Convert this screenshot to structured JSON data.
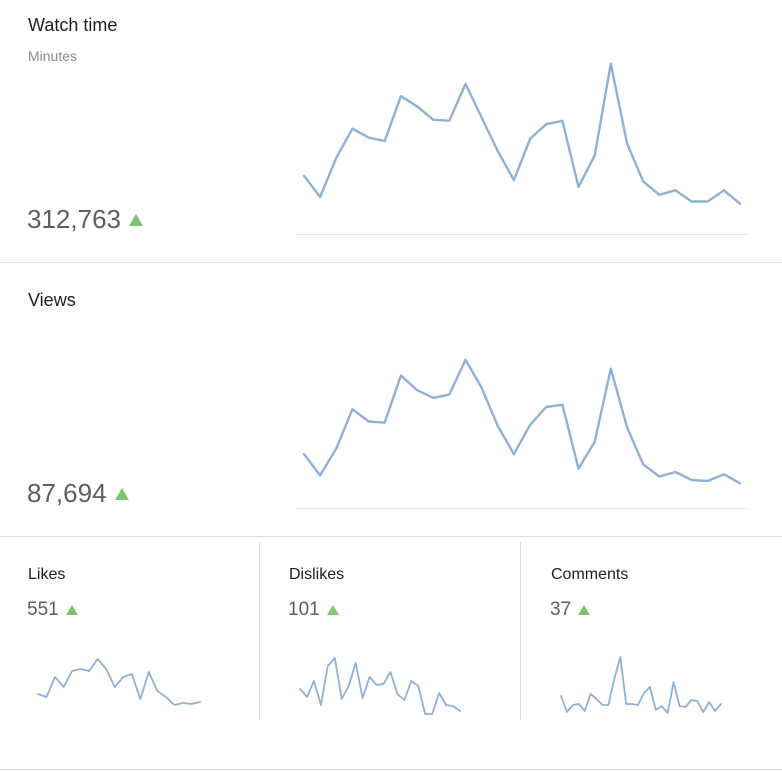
{
  "colors": {
    "line": "#8fb1d5",
    "up": "#7cc66d",
    "divider": "#dcdcdc"
  },
  "icons": {
    "trend": "triangle-up-icon"
  },
  "watch": {
    "title": "Watch time",
    "subtitle": "Minutes",
    "value": "312,763"
  },
  "views": {
    "title": "Views",
    "value": "87,694"
  },
  "likes": {
    "title": "Likes",
    "value": "551"
  },
  "dislikes": {
    "title": "Dislikes",
    "value": "101"
  },
  "comments": {
    "title": "Comments",
    "value": "37"
  },
  "chart_data": [
    {
      "id": "watch",
      "type": "line",
      "series": [
        {
          "values": [
            44,
            25,
            60,
            86,
            78,
            75,
            115,
            106,
            94,
            93,
            126,
            96,
            66,
            40,
            77,
            90,
            93,
            34,
            62,
            144,
            73,
            39,
            27,
            31,
            21,
            21,
            31,
            19
          ]
        }
      ],
      "ylim": [
        0,
        150
      ],
      "grid": false
    },
    {
      "id": "views",
      "type": "line",
      "series": [
        {
          "values": [
            40,
            21,
            45,
            80,
            69,
            68,
            110,
            97,
            90,
            93,
            124,
            99,
            65,
            40,
            66,
            82,
            84,
            27,
            51,
            116,
            64,
            31,
            20,
            24,
            17,
            16,
            22,
            14
          ]
        }
      ],
      "ylim": [
        0,
        130
      ],
      "grid": false
    },
    {
      "id": "likes",
      "type": "line",
      "series": [
        {
          "values": [
            20,
            17,
            37,
            27,
            43,
            45,
            43,
            55,
            45,
            27,
            37,
            40,
            15,
            42,
            23,
            17,
            9,
            11,
            10,
            12
          ]
        }
      ],
      "ylim": [
        0,
        60
      ],
      "grid": false
    },
    {
      "id": "dislikes",
      "type": "line",
      "series": [
        {
          "values": [
            25,
            17,
            33,
            9,
            48,
            56,
            15,
            28,
            51,
            16,
            37,
            29,
            30,
            42,
            20,
            14,
            33,
            28,
            0,
            0,
            21,
            9,
            8,
            3
          ]
        }
      ],
      "ylim": [
        0,
        60
      ],
      "grid": false
    },
    {
      "id": "comments",
      "type": "line",
      "series": [
        {
          "values": [
            18,
            2,
            9,
            10,
            3,
            20,
            15,
            9,
            9,
            35,
            57,
            10,
            10,
            9,
            21,
            27,
            4,
            8,
            1,
            32,
            8,
            7,
            14,
            13,
            2,
            12,
            3,
            10
          ]
        }
      ],
      "ylim": [
        0,
        60
      ],
      "grid": false
    }
  ]
}
